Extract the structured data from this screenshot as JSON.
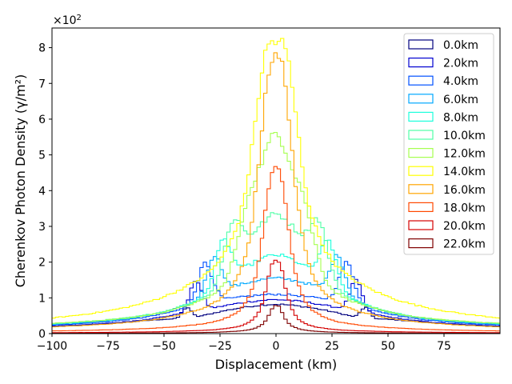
{
  "chart_data": {
    "type": "line",
    "style": "step",
    "title": "",
    "xlabel": "Displacement (km)",
    "ylabel": "Cherenkov Photon Density (γ/m²)",
    "y_scale_label": "×10²",
    "y_scale_base": "×10",
    "y_scale_exp": "2",
    "xlim": [
      -100,
      100
    ],
    "ylim": [
      0,
      8.55
    ],
    "xticks": [
      -100,
      -75,
      -50,
      -25,
      0,
      25,
      50,
      75
    ],
    "xtick_labels": [
      "−100",
      "−75",
      "−50",
      "−25",
      "0",
      "25",
      "50",
      "75"
    ],
    "yticks": [
      0,
      1,
      2,
      3,
      4,
      5,
      6,
      7,
      8
    ],
    "ytick_labels": [
      "0",
      "1",
      "2",
      "3",
      "4",
      "5",
      "6",
      "7",
      "8"
    ],
    "legend_position": "top-right",
    "series": [
      {
        "name": "0.0km",
        "color": "#00007f",
        "shape": "ring",
        "peak": 0.82,
        "ring_r": 40,
        "ring_w": 3,
        "ring_h": 0.35,
        "base": 0.38,
        "tail": 0.3
      },
      {
        "name": "2.0km",
        "color": "#0000d0",
        "shape": "ring",
        "peak": 0.95,
        "ring_r": 36,
        "ring_w": 4,
        "ring_h": 0.9,
        "base": 0.6,
        "tail": 0.3
      },
      {
        "name": "4.0km",
        "color": "#0050ff",
        "shape": "ring",
        "peak": 1.1,
        "ring_r": 32,
        "ring_w": 5,
        "ring_h": 1.15,
        "base": 0.85,
        "tail": 0.35
      },
      {
        "name": "6.0km",
        "color": "#00a8ff",
        "shape": "ring",
        "peak": 1.55,
        "ring_r": 28,
        "ring_w": 5,
        "ring_h": 1.1,
        "base": 1.1,
        "tail": 0.38
      },
      {
        "name": "8.0km",
        "color": "#1cffdc",
        "shape": "ring",
        "peak": 2.2,
        "ring_r": 24,
        "ring_w": 5.5,
        "ring_h": 1.3,
        "base": 1.3,
        "tail": 0.4
      },
      {
        "name": "10.0km",
        "color": "#50ffa6",
        "shape": "ring",
        "peak": 3.35,
        "ring_r": 20,
        "ring_w": 6,
        "ring_h": 1.6,
        "base": 1.5,
        "tail": 0.42
      },
      {
        "name": "12.0km",
        "color": "#a6ff50",
        "shape": "ring",
        "peak": 5.6,
        "ring_r": 15,
        "ring_w": 6,
        "ring_h": 1.3,
        "base": 1.8,
        "tail": 0.42
      },
      {
        "name": "14.0km",
        "color": "#ffff00",
        "shape": "core",
        "peak": 8.15,
        "width": 11,
        "power": 3.2,
        "base": 1.8,
        "tail": 0.35
      },
      {
        "name": "16.0km",
        "color": "#ffa500",
        "shape": "core",
        "peak": 7.7,
        "width": 8.5,
        "power": 3.0,
        "base": 0.9,
        "tail": 0.18
      },
      {
        "name": "18.0km",
        "color": "#ff4800",
        "shape": "core",
        "peak": 4.68,
        "width": 6.5,
        "power": 2.8,
        "base": 0.45,
        "tail": 0.08
      },
      {
        "name": "20.0km",
        "color": "#d40000",
        "shape": "core",
        "peak": 2.08,
        "width": 4.8,
        "power": 2.6,
        "base": 0.22,
        "tail": 0.03
      },
      {
        "name": "22.0km",
        "color": "#7f0000",
        "shape": "core",
        "peak": 0.8,
        "width": 3.8,
        "power": 2.4,
        "base": 0.12,
        "tail": 0.01
      }
    ]
  }
}
